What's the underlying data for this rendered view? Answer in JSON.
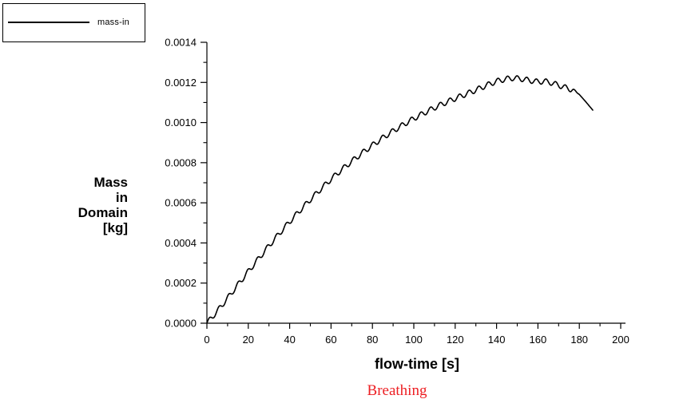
{
  "chart": {
    "legend_label": "mass-in",
    "xlabel": "flow-time [s]",
    "ylabel_lines": [
      "Mass",
      "in",
      "Domain",
      "[kg]"
    ],
    "title": "Breathing",
    "title_color": "#ed2024",
    "axis_color": "#000000",
    "curve_color": "#000000"
  },
  "chart_data": {
    "type": "line",
    "title": "Breathing",
    "xlabel": "flow-time [s]",
    "ylabel": "Mass in Domain [kg]",
    "legend": [
      "mass-in"
    ],
    "legend_position": "top-left-outside",
    "grid": false,
    "xlim": [
      0,
      200
    ],
    "ylim": [
      0,
      0.0014
    ],
    "x_tick_values": [
      0,
      20,
      40,
      60,
      80,
      100,
      120,
      140,
      160,
      180,
      200
    ],
    "x_tick_labels": [
      "0",
      "20",
      "40",
      "60",
      "80",
      "100",
      "120",
      "140",
      "160",
      "180",
      "200"
    ],
    "x_minor_step": 10,
    "y_tick_values": [
      0.0,
      0.0002,
      0.0004,
      0.0006,
      0.0008,
      0.001,
      0.0012,
      0.0014
    ],
    "y_tick_labels": [
      "0.0000",
      "0.0002",
      "0.0004",
      "0.0006",
      "0.0008",
      "0.0010",
      "0.0012",
      "0.0014"
    ],
    "y_minor_step": 0.0001,
    "series": [
      {
        "name": "mass-in",
        "color": "#000000",
        "t_start": 0,
        "t_end": 186.5,
        "sample_step_s": 0.25,
        "trend_points": [
          [
            0,
            0.0
          ],
          [
            5,
            6e-05
          ],
          [
            10,
            0.000125
          ],
          [
            15,
            0.000192
          ],
          [
            20,
            0.000258
          ],
          [
            25,
            0.000322
          ],
          [
            30,
            0.000386
          ],
          [
            35,
            0.000447
          ],
          [
            40,
            0.000506
          ],
          [
            45,
            0.000562
          ],
          [
            50,
            0.000616
          ],
          [
            55,
            0.000668
          ],
          [
            60,
            0.000718
          ],
          [
            65,
            0.000764
          ],
          [
            70,
            0.000807
          ],
          [
            75,
            0.000848
          ],
          [
            80,
            0.000887
          ],
          [
            85,
            0.000924
          ],
          [
            90,
            0.000958
          ],
          [
            95,
            0.00099
          ],
          [
            100,
            0.00102
          ],
          [
            105,
            0.001048
          ],
          [
            110,
            0.001074
          ],
          [
            115,
            0.001098
          ],
          [
            120,
            0.00112
          ],
          [
            125,
            0.001141
          ],
          [
            130,
            0.001162
          ],
          [
            135,
            0.001185
          ],
          [
            140,
            0.001206
          ],
          [
            145,
            0.001218
          ],
          [
            148,
            0.001222
          ],
          [
            152,
            0.001218
          ],
          [
            156,
            0.00121
          ],
          [
            160,
            0.001203
          ],
          [
            163,
            0.001206
          ],
          [
            166,
            0.0012
          ],
          [
            170,
            0.001186
          ],
          [
            174,
            0.001172
          ],
          [
            177,
            0.001162
          ],
          [
            180,
            0.00114
          ],
          [
            183,
            0.001105
          ],
          [
            186.5,
            0.001062
          ]
        ],
        "oscillation": {
          "amplitude": 1.3e-05,
          "period_s": 4.65,
          "taper_start_s": 176,
          "taper_end_s": 179.5
        },
        "peak": {
          "t_s": 148,
          "mass_kg": 0.00122
        },
        "end_value_kg": 0.00106
      }
    ]
  }
}
